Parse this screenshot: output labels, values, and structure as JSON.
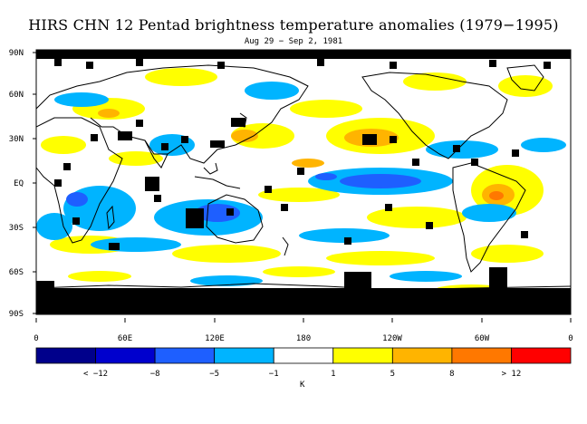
{
  "title": "HIRS CHN 12 Pentad brightness temperature anomalies (1979−1995)",
  "subtitle": "Aug 29 − Sep 2, 1981",
  "lat_labels": [
    "90N",
    "60N",
    "30N",
    "EQ",
    "30S",
    "60S",
    "90S"
  ],
  "lon_labels": [
    "0",
    "60E",
    "120E",
    "180",
    "120W",
    "60W",
    "0"
  ],
  "colorbar": {
    "colors": [
      "#00008b",
      "#0000cd",
      "#1e5fff",
      "#00b4ff",
      "#ffffff",
      "#ffff00",
      "#ffb400",
      "#ff7800",
      "#ff0000"
    ],
    "labels": [
      "< −12",
      "−8",
      "−5",
      "−1",
      "1",
      "5",
      "8",
      "> 12"
    ],
    "units": "K"
  },
  "no_data_color": "#000000"
}
